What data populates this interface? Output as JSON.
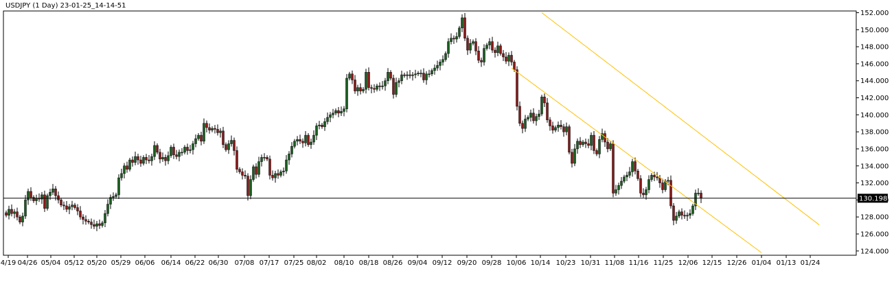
{
  "chart_data": {
    "type": "candlestick",
    "title": "USDJPY (1 Day) 23-01-25_14-14-51",
    "symbol": "USDJPY",
    "timeframe": "1 Day",
    "ylim": [
      123.5,
      152.2
    ],
    "y_ticks": [
      "124.000",
      "126.000",
      "128.000",
      "130.000",
      "132.000",
      "134.000",
      "136.000",
      "138.000",
      "140.000",
      "142.000",
      "144.000",
      "146.000",
      "148.000",
      "150.000",
      "152.000"
    ],
    "x_ticks": [
      "4/19",
      "04/26",
      "05/04",
      "05/12",
      "05/20",
      "05/29",
      "06/06",
      "06/14",
      "06/22",
      "06/30",
      "07/08",
      "07/17",
      "07/25",
      "08/02",
      "08/10",
      "08/18",
      "08/26",
      "09/04",
      "09/12",
      "09/20",
      "09/28",
      "10/06",
      "10/14",
      "10/23",
      "10/31",
      "11/08",
      "11/16",
      "11/25",
      "12/06",
      "12/15",
      "12/26",
      "01/04",
      "01/13",
      "01/24"
    ],
    "current_price": "130.198",
    "colors": {
      "background": "#ffffff",
      "frame": "#000000",
      "bull_body": "#1a5e20",
      "bear_body": "#8b1a1a",
      "wick": "#000000",
      "channel": "#ffc000",
      "price_line": "#000000",
      "price_box": "#000000"
    },
    "channel": {
      "upper": [
        {
          "bar": 195,
          "price": 152.0
        },
        {
          "bar": 289,
          "price": 128.8
        }
      ],
      "lower": [
        {
          "bar": 184,
          "price": 145.5
        },
        {
          "bar": 275,
          "price": 123.8
        }
      ]
    },
    "candles": [
      [
        128.5,
        128.2
      ],
      [
        128.2,
        128.9
      ],
      [
        128.9,
        128.4
      ],
      [
        128.4,
        128.6
      ],
      [
        128.6,
        128.0
      ],
      [
        128.0,
        127.4
      ],
      [
        127.4,
        128.1
      ],
      [
        128.1,
        130.0
      ],
      [
        130.0,
        131.0
      ],
      [
        131.0,
        130.3
      ],
      [
        130.3,
        129.9
      ],
      [
        129.9,
        130.2
      ],
      [
        130.2,
        130.1
      ],
      [
        130.1,
        130.6
      ],
      [
        130.6,
        129.0
      ],
      [
        129.0,
        130.5
      ],
      [
        130.5,
        130.9
      ],
      [
        130.9,
        131.3
      ],
      [
        131.3,
        130.5
      ],
      [
        130.5,
        130.0
      ],
      [
        130.0,
        129.4
      ],
      [
        129.4,
        129.3
      ],
      [
        129.3,
        128.9
      ],
      [
        128.9,
        129.2
      ],
      [
        129.2,
        129.4
      ],
      [
        129.4,
        129.1
      ],
      [
        129.1,
        128.7
      ],
      [
        128.7,
        128.0
      ],
      [
        128.0,
        127.7
      ],
      [
        127.7,
        127.5
      ],
      [
        127.5,
        127.4
      ],
      [
        127.4,
        127.1
      ],
      [
        127.1,
        126.9
      ],
      [
        126.9,
        127.2
      ],
      [
        127.2,
        127.0
      ],
      [
        127.0,
        127.3
      ],
      [
        127.3,
        128.4
      ],
      [
        128.4,
        129.5
      ],
      [
        129.5,
        130.3
      ],
      [
        130.3,
        130.4
      ],
      [
        130.4,
        130.6
      ],
      [
        130.6,
        132.6
      ],
      [
        132.6,
        133.1
      ],
      [
        133.1,
        134.0
      ],
      [
        134.0,
        133.6
      ],
      [
        133.6,
        134.7
      ],
      [
        134.7,
        134.4
      ],
      [
        134.4,
        135.1
      ],
      [
        135.1,
        134.7
      ],
      [
        134.7,
        134.3
      ],
      [
        134.3,
        135.0
      ],
      [
        135.0,
        134.7
      ],
      [
        134.7,
        134.6
      ],
      [
        134.6,
        135.1
      ],
      [
        135.1,
        136.4
      ],
      [
        136.4,
        135.6
      ],
      [
        135.6,
        134.8
      ],
      [
        134.8,
        135.0
      ],
      [
        135.0,
        134.6
      ],
      [
        134.6,
        135.2
      ],
      [
        135.2,
        136.2
      ],
      [
        136.2,
        135.3
      ],
      [
        135.3,
        135.1
      ],
      [
        135.1,
        135.6
      ],
      [
        135.6,
        135.6
      ],
      [
        135.6,
        136.2
      ],
      [
        136.2,
        135.8
      ],
      [
        135.8,
        135.9
      ],
      [
        135.9,
        136.6
      ],
      [
        136.6,
        137.2
      ],
      [
        137.2,
        137.6
      ],
      [
        137.6,
        136.9
      ],
      [
        136.9,
        139.0
      ],
      [
        139.0,
        138.5
      ],
      [
        138.5,
        138.2
      ],
      [
        138.2,
        138.4
      ],
      [
        138.4,
        138.3
      ],
      [
        138.3,
        137.9
      ],
      [
        137.9,
        138.1
      ],
      [
        138.1,
        136.5
      ],
      [
        136.5,
        135.9
      ],
      [
        135.9,
        136.6
      ],
      [
        136.6,
        137.0
      ],
      [
        137.0,
        135.8
      ],
      [
        135.8,
        133.6
      ],
      [
        133.6,
        133.3
      ],
      [
        133.3,
        132.9
      ],
      [
        132.9,
        132.8
      ],
      [
        132.8,
        130.5
      ],
      [
        130.5,
        132.4
      ],
      [
        132.4,
        133.9
      ],
      [
        133.9,
        133.0
      ],
      [
        133.0,
        134.5
      ],
      [
        134.5,
        135.0
      ],
      [
        135.0,
        135.0
      ],
      [
        135.0,
        134.8
      ],
      [
        134.8,
        132.9
      ],
      [
        132.9,
        132.6
      ],
      [
        132.6,
        133.1
      ],
      [
        133.1,
        132.9
      ],
      [
        132.9,
        133.3
      ],
      [
        133.3,
        133.4
      ],
      [
        133.4,
        134.7
      ],
      [
        134.7,
        135.4
      ],
      [
        135.4,
        136.3
      ],
      [
        136.3,
        136.9
      ],
      [
        136.9,
        137.1
      ],
      [
        137.1,
        136.9
      ],
      [
        136.9,
        136.7
      ],
      [
        136.7,
        137.6
      ],
      [
        137.6,
        136.5
      ],
      [
        136.5,
        136.8
      ],
      [
        136.8,
        137.6
      ],
      [
        137.6,
        138.7
      ],
      [
        138.7,
        138.8
      ],
      [
        138.8,
        138.6
      ],
      [
        138.6,
        139.2
      ],
      [
        139.2,
        139.7
      ],
      [
        139.7,
        140.0
      ],
      [
        140.0,
        140.2
      ],
      [
        140.2,
        140.5
      ],
      [
        140.5,
        140.2
      ],
      [
        140.2,
        140.4
      ],
      [
        140.4,
        140.7
      ],
      [
        140.7,
        144.3
      ],
      [
        144.3,
        144.8
      ],
      [
        144.8,
        144.1
      ],
      [
        144.1,
        142.8
      ],
      [
        142.8,
        143.2
      ],
      [
        143.2,
        142.8
      ],
      [
        142.8,
        143.0
      ],
      [
        143.0,
        145.0
      ],
      [
        145.0,
        143.2
      ],
      [
        143.2,
        143.1
      ],
      [
        143.1,
        143.0
      ],
      [
        143.0,
        143.4
      ],
      [
        143.4,
        143.3
      ],
      [
        143.3,
        143.4
      ],
      [
        143.4,
        144.0
      ],
      [
        144.0,
        145.0
      ],
      [
        145.0,
        144.3
      ],
      [
        144.3,
        142.4
      ],
      [
        142.4,
        143.8
      ],
      [
        143.8,
        144.0
      ],
      [
        144.0,
        144.7
      ],
      [
        144.7,
        144.6
      ],
      [
        144.6,
        144.7
      ],
      [
        144.7,
        144.6
      ],
      [
        144.6,
        144.7
      ],
      [
        144.7,
        144.8
      ],
      [
        144.8,
        144.9
      ],
      [
        144.9,
        144.9
      ],
      [
        144.9,
        144.1
      ],
      [
        144.1,
        144.8
      ],
      [
        144.8,
        144.8
      ],
      [
        144.8,
        145.2
      ],
      [
        145.2,
        145.5
      ],
      [
        145.5,
        145.8
      ],
      [
        145.8,
        146.2
      ],
      [
        146.2,
        146.5
      ],
      [
        146.5,
        147.2
      ],
      [
        147.2,
        148.6
      ],
      [
        148.6,
        149.0
      ],
      [
        149.0,
        148.9
      ],
      [
        148.9,
        149.2
      ],
      [
        149.2,
        150.2
      ],
      [
        150.2,
        151.4
      ],
      [
        151.4,
        149.0
      ],
      [
        149.0,
        147.6
      ],
      [
        147.6,
        148.4
      ],
      [
        148.4,
        148.6
      ],
      [
        148.6,
        147.5
      ],
      [
        147.5,
        146.4
      ],
      [
        146.4,
        146.2
      ],
      [
        146.2,
        147.8
      ],
      [
        147.8,
        148.2
      ],
      [
        148.2,
        148.6
      ],
      [
        148.6,
        147.6
      ],
      [
        147.6,
        147.3
      ],
      [
        147.3,
        148.1
      ],
      [
        148.1,
        147.2
      ],
      [
        147.2,
        146.8
      ],
      [
        146.8,
        146.3
      ],
      [
        146.3,
        147.0
      ],
      [
        147.0,
        146.2
      ],
      [
        146.2,
        145.3
      ],
      [
        145.3,
        141.0
      ],
      [
        141.0,
        139.0
      ],
      [
        139.0,
        138.4
      ],
      [
        138.4,
        139.5
      ],
      [
        139.5,
        139.7
      ],
      [
        139.7,
        140.2
      ],
      [
        140.2,
        139.3
      ],
      [
        139.3,
        139.8
      ],
      [
        139.8,
        140.1
      ],
      [
        140.1,
        142.1
      ],
      [
        142.1,
        141.4
      ],
      [
        141.4,
        139.4
      ],
      [
        139.4,
        138.7
      ],
      [
        138.7,
        138.2
      ],
      [
        138.2,
        138.5
      ],
      [
        138.5,
        138.8
      ],
      [
        138.8,
        138.6
      ],
      [
        138.6,
        138.0
      ],
      [
        138.0,
        138.6
      ],
      [
        138.6,
        135.6
      ],
      [
        135.6,
        134.3
      ],
      [
        134.3,
        136.0
      ],
      [
        136.0,
        136.9
      ],
      [
        136.9,
        136.5
      ],
      [
        136.5,
        136.8
      ],
      [
        136.8,
        136.6
      ],
      [
        136.6,
        136.4
      ],
      [
        136.4,
        137.6
      ],
      [
        137.6,
        135.8
      ],
      [
        135.8,
        135.4
      ],
      [
        135.4,
        137.1
      ],
      [
        137.1,
        137.8
      ],
      [
        137.8,
        136.8
      ],
      [
        136.8,
        136.0
      ],
      [
        136.0,
        136.6
      ],
      [
        136.6,
        130.8
      ],
      [
        130.8,
        131.2
      ],
      [
        131.2,
        131.7
      ],
      [
        131.7,
        132.2
      ],
      [
        132.2,
        132.7
      ],
      [
        132.7,
        132.9
      ],
      [
        132.9,
        133.3
      ],
      [
        133.3,
        134.5
      ],
      [
        134.5,
        133.4
      ],
      [
        133.4,
        132.5
      ],
      [
        132.5,
        130.8
      ],
      [
        130.8,
        130.6
      ],
      [
        130.6,
        131.2
      ],
      [
        131.2,
        132.4
      ],
      [
        132.4,
        132.9
      ],
      [
        132.9,
        132.7
      ],
      [
        132.7,
        132.6
      ],
      [
        132.6,
        132.0
      ],
      [
        132.0,
        131.2
      ],
      [
        131.2,
        132.2
      ],
      [
        132.2,
        132.3
      ],
      [
        132.3,
        129.3
      ],
      [
        129.3,
        127.6
      ],
      [
        127.6,
        128.1
      ],
      [
        128.1,
        128.6
      ],
      [
        128.6,
        128.2
      ],
      [
        128.2,
        128.1
      ],
      [
        128.1,
        128.2
      ],
      [
        128.2,
        128.4
      ],
      [
        128.4,
        129.3
      ],
      [
        129.3,
        130.8
      ],
      [
        130.8,
        130.8
      ],
      [
        130.8,
        130.2
      ]
    ]
  }
}
